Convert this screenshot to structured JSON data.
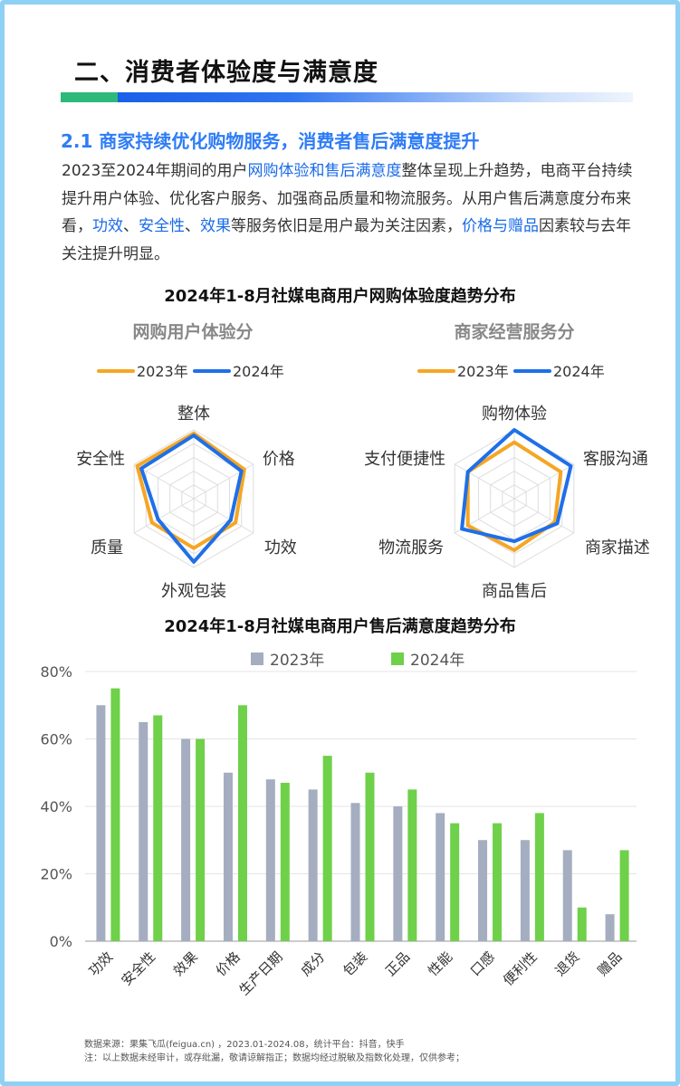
{
  "section_title": "二、消费者体验度与满意度",
  "subheading": "2.1 商家持续优化购物服务，消费者售后满意度提升",
  "paragraph": [
    {
      "t": "2023至2024年期间的用户",
      "h": false
    },
    {
      "t": "网购体验和售后满意度",
      "h": true
    },
    {
      "t": "整体呈现上升趋势，电商平台持续提升用户体验、优化客户服务、加强商品质量和物流服务。从用户售后满意度分布来看，",
      "h": false
    },
    {
      "t": "功效",
      "h": true
    },
    {
      "t": "、",
      "h": false
    },
    {
      "t": "安全性",
      "h": true
    },
    {
      "t": "、",
      "h": false
    },
    {
      "t": "效果",
      "h": true
    },
    {
      "t": "等服务依旧是用户最为关注因素，",
      "h": false
    },
    {
      "t": "价格与赠品",
      "h": true
    },
    {
      "t": "因素较与去年关注提升明显。",
      "h": false
    }
  ],
  "colors": {
    "y2023": "#f5a623",
    "y2024": "#1f6fe8",
    "bar2023": "#a5adc0",
    "bar2024": "#6fd04a"
  },
  "radar_section": {
    "title": "2024年1-8月社媒电商用户网购体验度趋势分布"
  },
  "bar_section": {
    "title": "2024年1-8月社媒电商用户售后满意度趋势分布"
  },
  "chart_data": [
    {
      "type": "radar",
      "title": "网购用户体验分",
      "axes": [
        "整体",
        "价格",
        "功效",
        "外观包装",
        "质量",
        "安全性"
      ],
      "series": [
        {
          "name": "2023年",
          "values": [
            0.95,
            0.85,
            0.7,
            0.72,
            0.7,
            0.95
          ]
        },
        {
          "name": "2024年",
          "values": [
            0.92,
            0.8,
            0.62,
            0.92,
            0.6,
            0.88
          ]
        }
      ],
      "legend": [
        "2023年",
        "2024年"
      ]
    },
    {
      "type": "radar",
      "title": "商家经营服务分",
      "axes": [
        "购物体验",
        "客服沟通",
        "商家描述",
        "商品售后",
        "物流服务",
        "支付便捷性"
      ],
      "series": [
        {
          "name": "2023年",
          "values": [
            0.82,
            0.78,
            0.68,
            0.75,
            0.78,
            0.78
          ]
        },
        {
          "name": "2024年",
          "values": [
            1.0,
            0.95,
            0.72,
            0.62,
            0.88,
            0.78
          ]
        }
      ],
      "legend": [
        "2023年",
        "2024年"
      ]
    },
    {
      "type": "bar",
      "categories": [
        "功效",
        "安全性",
        "效果",
        "价格",
        "生产日期",
        "成分",
        "包装",
        "正品",
        "性能",
        "口感",
        "便利性",
        "退货",
        "赠品"
      ],
      "series": [
        {
          "name": "2023年",
          "values": [
            70,
            65,
            60,
            50,
            48,
            45,
            41,
            40,
            38,
            30,
            30,
            27,
            8
          ]
        },
        {
          "name": "2024年",
          "values": [
            75,
            67,
            60,
            70,
            47,
            55,
            50,
            45,
            35,
            35,
            38,
            10,
            27
          ]
        }
      ],
      "ylim": [
        0,
        80
      ],
      "yticks": [
        "0%",
        "20%",
        "40%",
        "60%",
        "80%"
      ],
      "unit": "%",
      "legend": "top"
    }
  ],
  "footer": {
    "line1": "数据来源：果集飞瓜(feigua.cn) ，2023.01-2024.08，统计平台：抖音，快手",
    "line2": "注：以上数据未经审计，或存纰漏，敬请谅解指正；数据均经过脱敏及指数化处理，仅供参考；"
  }
}
